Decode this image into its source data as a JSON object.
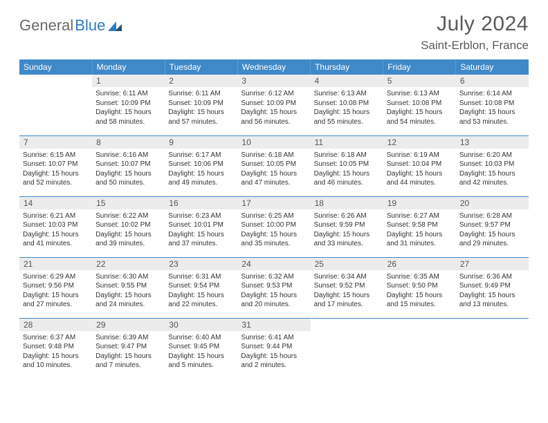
{
  "brand": {
    "name1": "General",
    "name2": "Blue"
  },
  "title": "July 2024",
  "location": "Saint-Erblon, France",
  "colors": {
    "header_bg": "#3f89c8",
    "header_text": "#ffffff",
    "daynum_bg": "#ececec",
    "row_border": "#3f89c8",
    "text": "#333333",
    "title_color": "#5a5a5a"
  },
  "days_of_week": [
    "Sunday",
    "Monday",
    "Tuesday",
    "Wednesday",
    "Thursday",
    "Friday",
    "Saturday"
  ],
  "weeks": [
    [
      {
        "n": "",
        "sunrise": "",
        "sunset": "",
        "daylight": ""
      },
      {
        "n": "1",
        "sunrise": "6:11 AM",
        "sunset": "10:09 PM",
        "daylight": "15 hours and 58 minutes."
      },
      {
        "n": "2",
        "sunrise": "6:11 AM",
        "sunset": "10:09 PM",
        "daylight": "15 hours and 57 minutes."
      },
      {
        "n": "3",
        "sunrise": "6:12 AM",
        "sunset": "10:09 PM",
        "daylight": "15 hours and 56 minutes."
      },
      {
        "n": "4",
        "sunrise": "6:13 AM",
        "sunset": "10:08 PM",
        "daylight": "15 hours and 55 minutes."
      },
      {
        "n": "5",
        "sunrise": "6:13 AM",
        "sunset": "10:08 PM",
        "daylight": "15 hours and 54 minutes."
      },
      {
        "n": "6",
        "sunrise": "6:14 AM",
        "sunset": "10:08 PM",
        "daylight": "15 hours and 53 minutes."
      }
    ],
    [
      {
        "n": "7",
        "sunrise": "6:15 AM",
        "sunset": "10:07 PM",
        "daylight": "15 hours and 52 minutes."
      },
      {
        "n": "8",
        "sunrise": "6:16 AM",
        "sunset": "10:07 PM",
        "daylight": "15 hours and 50 minutes."
      },
      {
        "n": "9",
        "sunrise": "6:17 AM",
        "sunset": "10:06 PM",
        "daylight": "15 hours and 49 minutes."
      },
      {
        "n": "10",
        "sunrise": "6:18 AM",
        "sunset": "10:05 PM",
        "daylight": "15 hours and 47 minutes."
      },
      {
        "n": "11",
        "sunrise": "6:18 AM",
        "sunset": "10:05 PM",
        "daylight": "15 hours and 46 minutes."
      },
      {
        "n": "12",
        "sunrise": "6:19 AM",
        "sunset": "10:04 PM",
        "daylight": "15 hours and 44 minutes."
      },
      {
        "n": "13",
        "sunrise": "6:20 AM",
        "sunset": "10:03 PM",
        "daylight": "15 hours and 42 minutes."
      }
    ],
    [
      {
        "n": "14",
        "sunrise": "6:21 AM",
        "sunset": "10:03 PM",
        "daylight": "15 hours and 41 minutes."
      },
      {
        "n": "15",
        "sunrise": "6:22 AM",
        "sunset": "10:02 PM",
        "daylight": "15 hours and 39 minutes."
      },
      {
        "n": "16",
        "sunrise": "6:23 AM",
        "sunset": "10:01 PM",
        "daylight": "15 hours and 37 minutes."
      },
      {
        "n": "17",
        "sunrise": "6:25 AM",
        "sunset": "10:00 PM",
        "daylight": "15 hours and 35 minutes."
      },
      {
        "n": "18",
        "sunrise": "6:26 AM",
        "sunset": "9:59 PM",
        "daylight": "15 hours and 33 minutes."
      },
      {
        "n": "19",
        "sunrise": "6:27 AM",
        "sunset": "9:58 PM",
        "daylight": "15 hours and 31 minutes."
      },
      {
        "n": "20",
        "sunrise": "6:28 AM",
        "sunset": "9:57 PM",
        "daylight": "15 hours and 29 minutes."
      }
    ],
    [
      {
        "n": "21",
        "sunrise": "6:29 AM",
        "sunset": "9:56 PM",
        "daylight": "15 hours and 27 minutes."
      },
      {
        "n": "22",
        "sunrise": "6:30 AM",
        "sunset": "9:55 PM",
        "daylight": "15 hours and 24 minutes."
      },
      {
        "n": "23",
        "sunrise": "6:31 AM",
        "sunset": "9:54 PM",
        "daylight": "15 hours and 22 minutes."
      },
      {
        "n": "24",
        "sunrise": "6:32 AM",
        "sunset": "9:53 PM",
        "daylight": "15 hours and 20 minutes."
      },
      {
        "n": "25",
        "sunrise": "6:34 AM",
        "sunset": "9:52 PM",
        "daylight": "15 hours and 17 minutes."
      },
      {
        "n": "26",
        "sunrise": "6:35 AM",
        "sunset": "9:50 PM",
        "daylight": "15 hours and 15 minutes."
      },
      {
        "n": "27",
        "sunrise": "6:36 AM",
        "sunset": "9:49 PM",
        "daylight": "15 hours and 13 minutes."
      }
    ],
    [
      {
        "n": "28",
        "sunrise": "6:37 AM",
        "sunset": "9:48 PM",
        "daylight": "15 hours and 10 minutes."
      },
      {
        "n": "29",
        "sunrise": "6:39 AM",
        "sunset": "9:47 PM",
        "daylight": "15 hours and 7 minutes."
      },
      {
        "n": "30",
        "sunrise": "6:40 AM",
        "sunset": "9:45 PM",
        "daylight": "15 hours and 5 minutes."
      },
      {
        "n": "31",
        "sunrise": "6:41 AM",
        "sunset": "9:44 PM",
        "daylight": "15 hours and 2 minutes."
      },
      {
        "n": "",
        "sunrise": "",
        "sunset": "",
        "daylight": ""
      },
      {
        "n": "",
        "sunrise": "",
        "sunset": "",
        "daylight": ""
      },
      {
        "n": "",
        "sunrise": "",
        "sunset": "",
        "daylight": ""
      }
    ]
  ],
  "labels": {
    "sunrise": "Sunrise:",
    "sunset": "Sunset:",
    "daylight": "Daylight:"
  }
}
